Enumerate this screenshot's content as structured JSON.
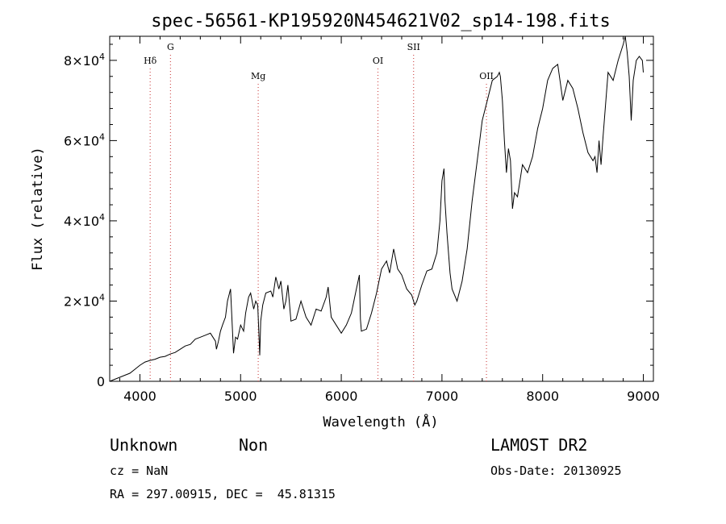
{
  "chart_data": {
    "type": "line",
    "title": "spec-56561-KP195920N454621V02_sp14-198.fits",
    "xlabel": "Wavelength (Å)",
    "ylabel": "Flux (relative)",
    "xlim": [
      3700,
      9100
    ],
    "ylim": [
      0,
      86000
    ],
    "x_ticks": [
      4000,
      5000,
      6000,
      7000,
      8000,
      9000
    ],
    "x_tick_labels": [
      "4000",
      "5000",
      "6000",
      "7000",
      "8000",
      "9000"
    ],
    "y_ticks": [
      0,
      20000,
      40000,
      60000,
      80000
    ],
    "y_tick_labels": [
      {
        "mantissa": "0",
        "exp": ""
      },
      {
        "mantissa": "2×10",
        "exp": "4"
      },
      {
        "mantissa": "4×10",
        "exp": "4"
      },
      {
        "mantissa": "6×10",
        "exp": "4"
      },
      {
        "mantissa": "8×10",
        "exp": "4"
      }
    ],
    "grid": false,
    "series": [
      {
        "color": "#000000",
        "x": [
          3700,
          3750,
          3800,
          3850,
          3900,
          3950,
          4000,
          4050,
          4100,
          4150,
          4200,
          4250,
          4300,
          4350,
          4400,
          4450,
          4500,
          4550,
          4600,
          4650,
          4700,
          4750,
          4760,
          4780,
          4800,
          4820,
          4850,
          4870,
          4900,
          4930,
          4950,
          4970,
          5000,
          5030,
          5050,
          5080,
          5100,
          5130,
          5150,
          5170,
          5190,
          5200,
          5220,
          5250,
          5300,
          5320,
          5350,
          5380,
          5400,
          5430,
          5450,
          5470,
          5500,
          5550,
          5600,
          5650,
          5700,
          5750,
          5800,
          5850,
          5870,
          5900,
          5950,
          6000,
          6050,
          6100,
          6150,
          6180,
          6190,
          6200,
          6250,
          6300,
          6350,
          6400,
          6450,
          6480,
          6520,
          6560,
          6600,
          6650,
          6700,
          6730,
          6750,
          6800,
          6850,
          6900,
          6950,
          6980,
          7000,
          7020,
          7030,
          7050,
          7080,
          7100,
          7150,
          7200,
          7250,
          7300,
          7350,
          7400,
          7450,
          7500,
          7550,
          7570,
          7580,
          7600,
          7620,
          7640,
          7660,
          7680,
          7700,
          7720,
          7750,
          7800,
          7850,
          7900,
          7950,
          8000,
          8050,
          8100,
          8150,
          8200,
          8250,
          8300,
          8350,
          8400,
          8450,
          8500,
          8520,
          8540,
          8560,
          8580,
          8600,
          8650,
          8700,
          8750,
          8800,
          8820,
          8840,
          8860,
          8880,
          8900,
          8930,
          8960,
          8990,
          9000
        ],
        "y": [
          0,
          500,
          1000,
          1500,
          2000,
          3000,
          4000,
          4800,
          5200,
          5500,
          6000,
          6200,
          6800,
          7200,
          8000,
          8800,
          9200,
          10500,
          11000,
          11500,
          12000,
          10000,
          8000,
          10000,
          12500,
          14000,
          16000,
          20000,
          23000,
          7000,
          11000,
          10500,
          14000,
          12500,
          17000,
          21000,
          22000,
          18000,
          20000,
          19000,
          6500,
          15000,
          19000,
          22000,
          22500,
          21000,
          26000,
          23000,
          25000,
          18000,
          20000,
          24000,
          15000,
          15500,
          20000,
          16000,
          14000,
          18000,
          17500,
          21000,
          23500,
          16000,
          14000,
          12000,
          14000,
          17000,
          23000,
          26500,
          15500,
          12500,
          13000,
          17000,
          22000,
          28000,
          30000,
          27000,
          33000,
          28000,
          26500,
          23000,
          21500,
          19000,
          20000,
          24000,
          27500,
          28000,
          32000,
          40000,
          50000,
          53000,
          45000,
          37000,
          27000,
          23000,
          20000,
          25000,
          33000,
          45000,
          55000,
          65000,
          70000,
          75000,
          76000,
          77000,
          76000,
          70000,
          60000,
          52000,
          58000,
          55000,
          43000,
          47000,
          46000,
          54000,
          52000,
          56000,
          63000,
          68000,
          75000,
          78000,
          79000,
          70000,
          75000,
          73000,
          68000,
          62000,
          57000,
          55000,
          56000,
          52000,
          60000,
          54000,
          61000,
          77000,
          75000,
          80000,
          84000,
          86000,
          82000,
          76000,
          65000,
          75000,
          80000,
          81000,
          80000,
          77000
        ]
      }
    ],
    "annotations": [
      {
        "label": "Hδ",
        "x": 4102,
        "level": "mid"
      },
      {
        "label": "G",
        "x": 4304,
        "level": "high"
      },
      {
        "label": "Mg",
        "x": 5175,
        "level": "low"
      },
      {
        "label": "OI",
        "x": 6364,
        "level": "mid"
      },
      {
        "label": "SII",
        "x": 6718,
        "level": "high"
      },
      {
        "label": "OII",
        "x": 7442,
        "level": "low"
      }
    ]
  },
  "info": {
    "object_class": "Unknown",
    "subclass": "Non",
    "survey": "LAMOST DR2",
    "redshift": "cz = NaN",
    "obs_date": "Obs-Date: 20130925",
    "coords": "RA = 297.00915, DEC =  45.81315"
  }
}
